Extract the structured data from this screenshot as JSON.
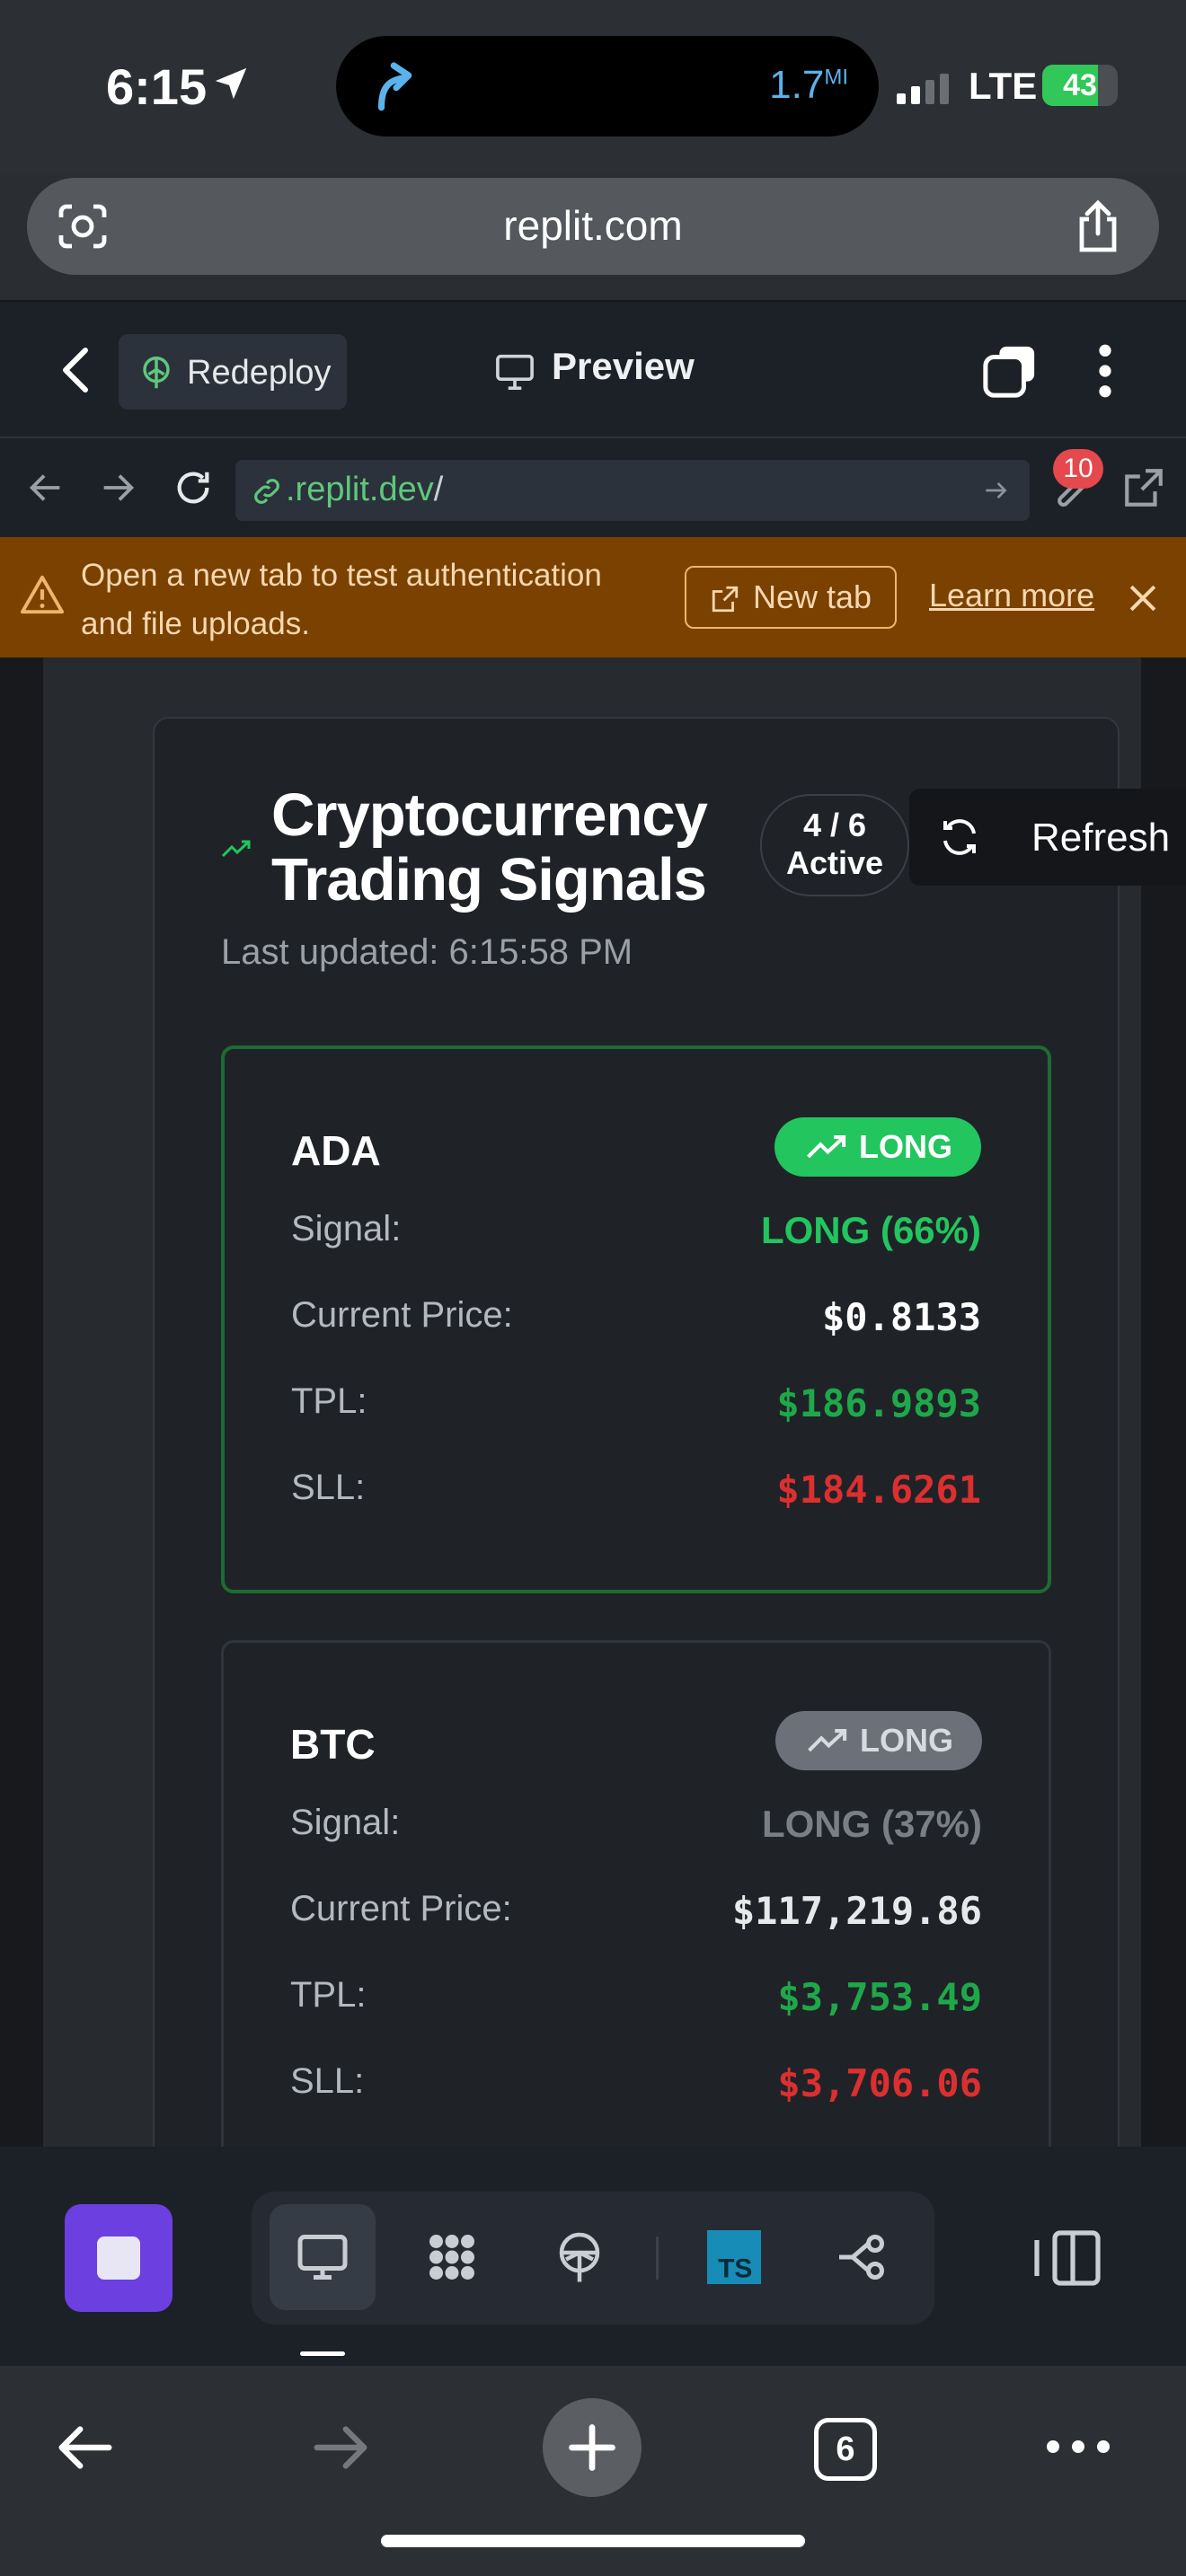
{
  "status_bar": {
    "time": "6:15",
    "distance": "1.7",
    "distance_unit": "MI",
    "network": "LTE",
    "battery": "43"
  },
  "browser": {
    "url": "replit.com",
    "tab_count": "6"
  },
  "replit_header": {
    "redeploy_label": "Redeploy",
    "preview_label": "Preview"
  },
  "webview": {
    "url_host": ".replit.dev",
    "url_path": "/",
    "badge_count": "10"
  },
  "banner": {
    "message": "Open a new tab to test authentication and file uploads.",
    "new_tab_label": "New tab",
    "learn_more_label": "Learn more"
  },
  "dashboard": {
    "title": "Cryptocurrency Trading Signals",
    "active_count": "4 / 6",
    "active_label": "Active",
    "refresh_label": "Refresh",
    "last_updated": "Last updated: 6:15:58 PM",
    "labels": {
      "signal": "Signal:",
      "current_price": "Current Price:",
      "tpl": "TPL:",
      "sll": "SLL:"
    },
    "cards": [
      {
        "coin": "ADA",
        "badge": "LONG",
        "signal": "LONG (66%)",
        "current_price": "$0.8133",
        "tpl": "$186.9893",
        "sll": "$184.6261"
      },
      {
        "coin": "BTC",
        "badge": "LONG",
        "signal": "LONG (37%)",
        "current_price": "$117,219.86",
        "tpl": "$3,753.49",
        "sll": "$3,706.06"
      }
    ]
  },
  "colors": {
    "long_green": "#22c55e",
    "tpl_green": "#1fa84a",
    "sll_red": "#dc2f2f",
    "muted_badge": "#6b7079",
    "banner_bg": "#7a4100",
    "replit_purple": "#6c3fe0"
  }
}
